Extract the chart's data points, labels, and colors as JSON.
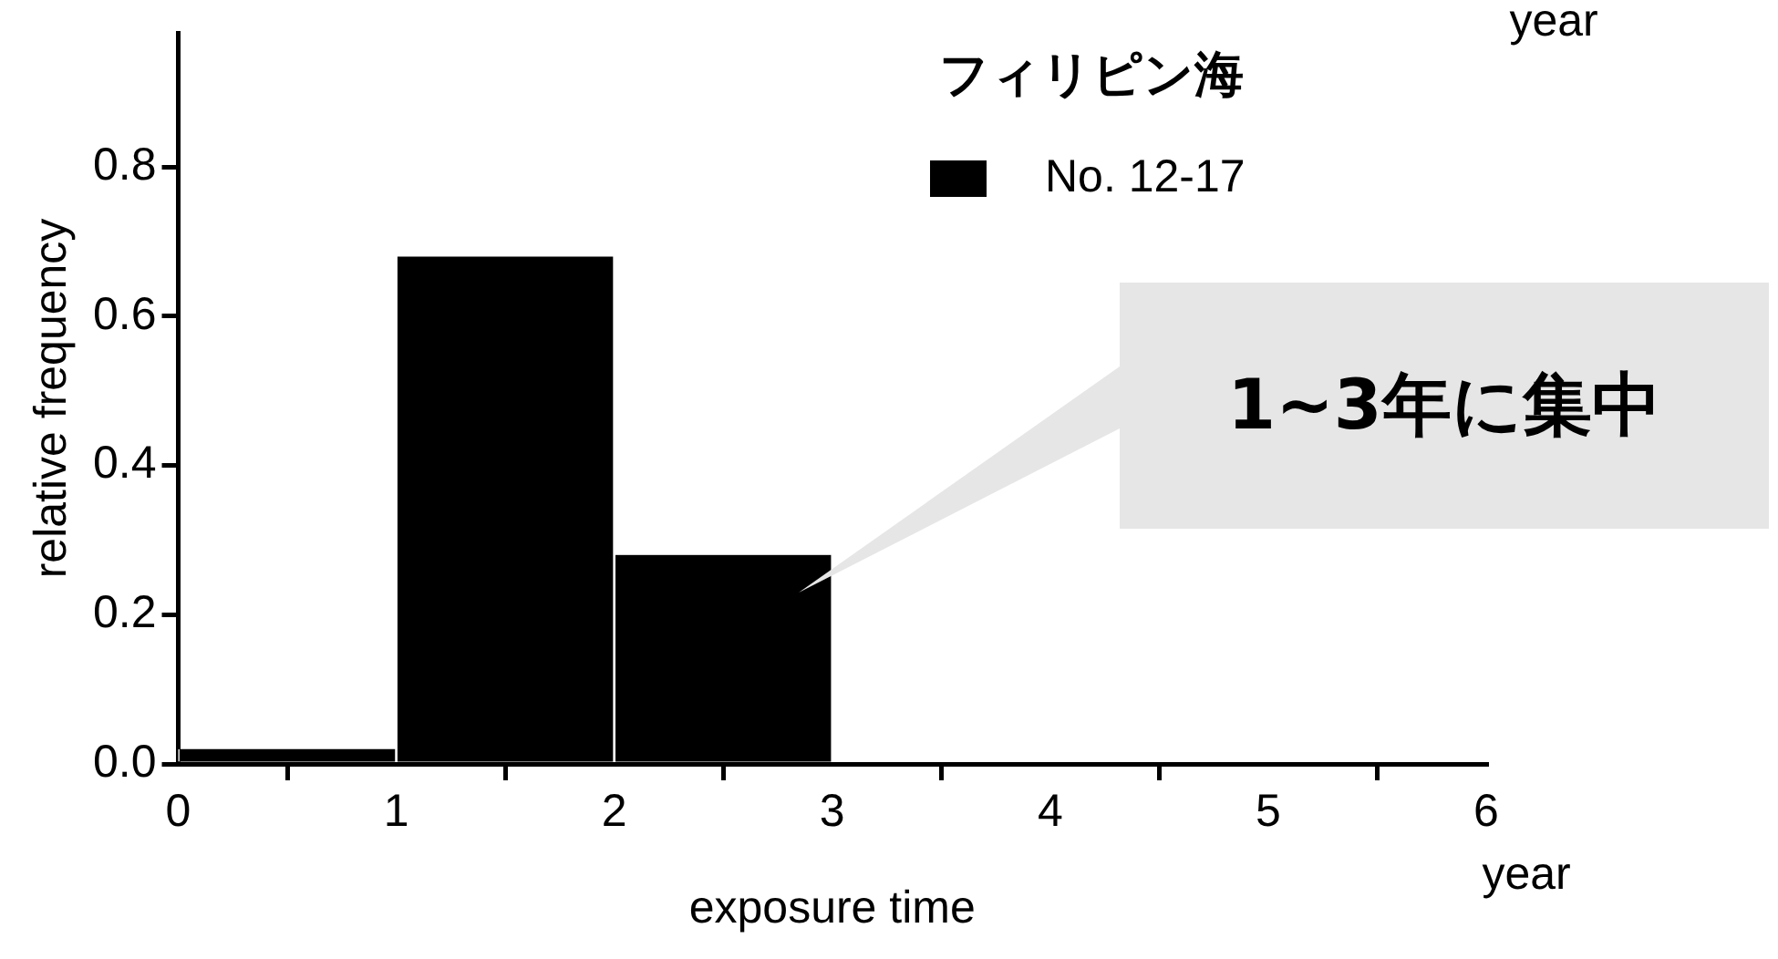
{
  "chart_data": {
    "type": "histogram",
    "xlabel": "exposure time",
    "ylabel": "relative frequency",
    "legend_title": "フィリピン海",
    "bins": [
      0,
      1,
      2,
      3
    ],
    "series": [
      {
        "name": "No. 12-17",
        "color": "#000000",
        "values": [
          0.02,
          0.68,
          0.28
        ]
      }
    ],
    "xlim": [
      0,
      6
    ],
    "xticks": [
      0,
      1,
      2,
      3,
      4,
      5,
      6
    ],
    "ylim": [
      0,
      0.98
    ],
    "yticks": [
      {
        "value": 0,
        "label": "0.0"
      },
      {
        "value": 0.2,
        "label": "0.2"
      },
      {
        "value": 0.4,
        "label": "0.4"
      },
      {
        "value": 0.6,
        "label": "0.6"
      },
      {
        "value": 0.8,
        "label": "0.8"
      }
    ],
    "grid": false,
    "legend": "top right",
    "annotations": [
      "1~3年に集中",
      "year",
      "year"
    ]
  }
}
